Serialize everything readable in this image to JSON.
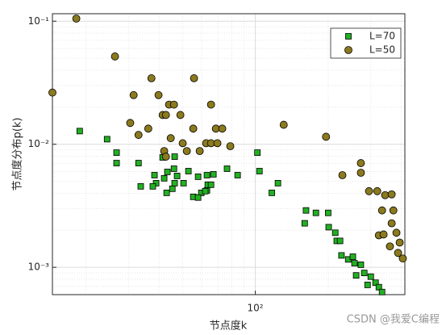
{
  "chart_data": {
    "type": "scatter",
    "xlabel": "节点度k",
    "ylabel": "节点度分布p(k)",
    "watermark": "CSDN @我爱C编程",
    "log_x": true,
    "log_y": true,
    "grid": true,
    "legend": "upper right",
    "xlim": [
      14.5,
      415
    ],
    "ylim": [
      0.0006,
      0.115
    ],
    "xticks": [
      {
        "value": 100,
        "label": "10²"
      }
    ],
    "yticks": [
      {
        "value": 0.001,
        "label": "10⁻³"
      },
      {
        "value": 0.01,
        "label": "10⁻²"
      },
      {
        "value": 0.1,
        "label": "10⁻¹"
      }
    ],
    "xminorticks": [
      20,
      30,
      40,
      50,
      60,
      70,
      80,
      90,
      200,
      300,
      400
    ],
    "yminorticks": [
      0.0007,
      0.0008,
      0.0009,
      0.002,
      0.003,
      0.004,
      0.005,
      0.006,
      0.007,
      0.008,
      0.009,
      0.02,
      0.03,
      0.04,
      0.05,
      0.06,
      0.07,
      0.08,
      0.09
    ],
    "series": [
      {
        "name": "L=70",
        "color": "#22b022",
        "marker": "square",
        "x": [
          18.8,
          24.4,
          26.7,
          26.7,
          32.9,
          41.4,
          46.4,
          46.1,
          52.9,
          43.3,
          42.0,
          47.5,
          38.3,
          38.9,
          33.6,
          37.7,
          43.0,
          45.4,
          46.4,
          50.5,
          58.0,
          63.1,
          67.1,
          63.6,
          59.8,
          65.6,
          63.1,
          55.4,
          58.0,
          62.1,
          76.4,
          84.5,
          102,
          104,
          124,
          117,
          162,
          160,
          178,
          200,
          201,
          214,
          217,
          224,
          227,
          242,
          257,
          273,
          282,
          300,
          314,
          324,
          334,
          261,
          291,
          253
        ],
        "values": [
          0.0128,
          0.011,
          0.00855,
          0.00703,
          0.00703,
          0.00782,
          0.00793,
          0.00633,
          0.00605,
          0.00596,
          0.00529,
          0.00553,
          0.00561,
          0.00483,
          0.00455,
          0.00455,
          0.00403,
          0.00435,
          0.00483,
          0.00483,
          0.00545,
          0.00561,
          0.0057,
          0.00469,
          0.00403,
          0.00469,
          0.00422,
          0.00374,
          0.00369,
          0.00416,
          0.00633,
          0.00561,
          0.00855,
          0.00605,
          0.00483,
          0.00403,
          0.0029,
          0.00228,
          0.00277,
          0.00277,
          0.00212,
          0.00191,
          0.00164,
          0.00164,
          0.00125,
          0.00116,
          0.00108,
          0.00105,
          0.0009,
          0.00084,
          0.00075,
          0.00069,
          0.00063,
          0.00086,
          0.00072,
          0.00122
        ]
      },
      {
        "name": "L=50",
        "color": "#8b7a1e",
        "marker": "circle",
        "x": [
          14.5,
          18.2,
          26.3,
          37.2,
          31.4,
          39.8,
          55.8,
          44.0,
          46.1,
          41.4,
          42.7,
          49.0,
          65.6,
          30.4,
          36.1,
          32.9,
          55.4,
          68.7,
          73.0,
          44.7,
          50.1,
          62.6,
          65.6,
          69.7,
          78.8,
          42.0,
          52.1,
          58.9,
          42.7,
          131,
          196,
          229,
          273,
          273,
          295,
          319,
          344,
          366,
          334,
          372,
          324,
          366,
          383,
          395,
          389,
          407,
          360,
          339
        ],
        "values": [
          0.0263,
          0.105,
          0.0517,
          0.0344,
          0.0251,
          0.0251,
          0.0344,
          0.021,
          0.021,
          0.0173,
          0.0173,
          0.0173,
          0.021,
          0.0149,
          0.0134,
          0.0119,
          0.0134,
          0.0134,
          0.0134,
          0.0112,
          0.0102,
          0.0102,
          0.0102,
          0.0102,
          0.00964,
          0.00881,
          0.00881,
          0.00881,
          0.00793,
          0.0144,
          0.0115,
          0.00561,
          0.00703,
          0.00587,
          0.00416,
          0.00416,
          0.00386,
          0.00392,
          0.0029,
          0.0029,
          0.00182,
          0.00228,
          0.00191,
          0.00159,
          0.00131,
          0.00118,
          0.00148,
          0.00185
        ]
      }
    ]
  }
}
